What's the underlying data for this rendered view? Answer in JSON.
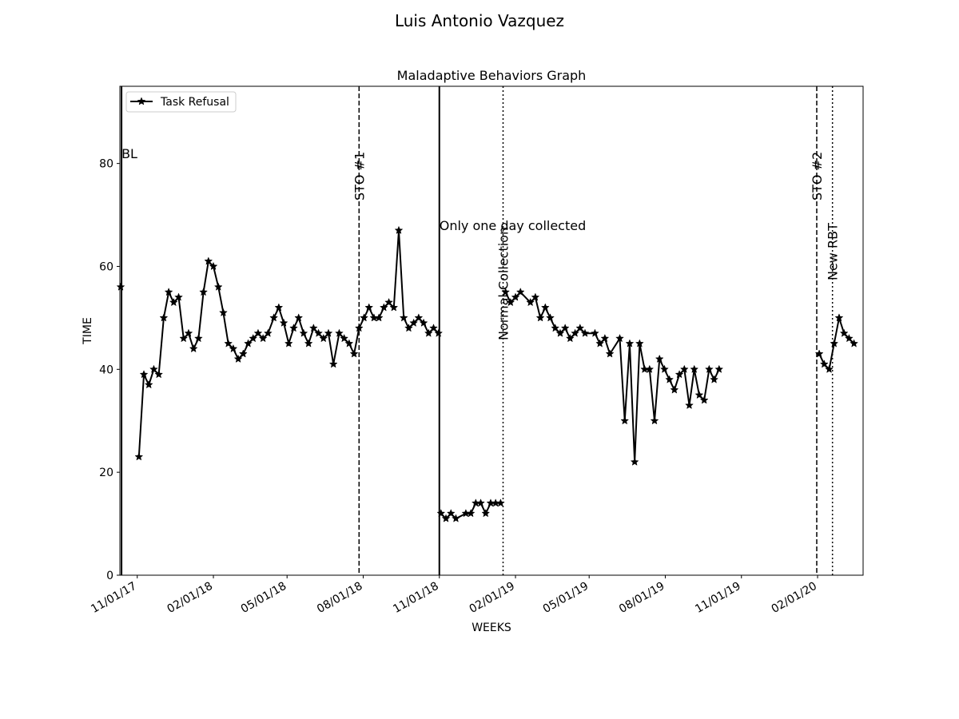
{
  "figure_title": "Luis Antonio  Vazquez",
  "chart_data": {
    "type": "line",
    "title": "Maladaptive Behaviors Graph",
    "xlabel": "WEEKS",
    "ylabel": "TIME",
    "ylim": [
      0,
      95
    ],
    "xlim": [
      "2017-10-11",
      "2020-03-27"
    ],
    "yticks": [
      0,
      20,
      40,
      60,
      80
    ],
    "xticks": [
      "11/01/17",
      "02/01/18",
      "05/01/18",
      "08/01/18",
      "11/01/18",
      "02/01/19",
      "05/01/19",
      "08/01/19",
      "11/01/19",
      "02/01/20"
    ],
    "xtick_dates": [
      "2017-11-01",
      "2018-02-01",
      "2018-05-01",
      "2018-08-01",
      "2018-11-01",
      "2019-02-01",
      "2019-05-01",
      "2019-08-01",
      "2019-11-01",
      "2020-02-01"
    ],
    "grid": false,
    "legend": {
      "position": "upper left",
      "entries": [
        "Task Refusal"
      ]
    },
    "marker": "star",
    "line_color": "#000000",
    "series": [
      {
        "name": "Task Refusal",
        "segments": [
          [
            [
              "2017-10-12",
              56
            ]
          ],
          [
            [
              "2017-11-03",
              23
            ],
            [
              "2017-11-09",
              39
            ],
            [
              "2017-11-15",
              37
            ],
            [
              "2017-11-21",
              40
            ],
            [
              "2017-11-27",
              39
            ],
            [
              "2017-12-03",
              50
            ],
            [
              "2017-12-09",
              55
            ],
            [
              "2017-12-15",
              53
            ],
            [
              "2017-12-21",
              54
            ],
            [
              "2017-12-27",
              46
            ],
            [
              "2018-01-02",
              47
            ],
            [
              "2018-01-08",
              44
            ],
            [
              "2018-01-14",
              46
            ],
            [
              "2018-01-20",
              55
            ],
            [
              "2018-01-26",
              61
            ],
            [
              "2018-02-01",
              60
            ],
            [
              "2018-02-07",
              56
            ],
            [
              "2018-02-13",
              51
            ],
            [
              "2018-02-19",
              45
            ],
            [
              "2018-02-25",
              44
            ],
            [
              "2018-03-03",
              42
            ],
            [
              "2018-03-09",
              43
            ],
            [
              "2018-03-15",
              45
            ],
            [
              "2018-03-21",
              46
            ],
            [
              "2018-03-27",
              47
            ],
            [
              "2018-04-02",
              46
            ],
            [
              "2018-04-08",
              47
            ],
            [
              "2018-04-15",
              50
            ],
            [
              "2018-04-21",
              52
            ],
            [
              "2018-04-27",
              49
            ],
            [
              "2018-05-03",
              45
            ],
            [
              "2018-05-09",
              48
            ],
            [
              "2018-05-15",
              50
            ],
            [
              "2018-05-21",
              47
            ],
            [
              "2018-05-27",
              45
            ],
            [
              "2018-06-02",
              48
            ],
            [
              "2018-06-08",
              47
            ],
            [
              "2018-06-14",
              46
            ],
            [
              "2018-06-20",
              47
            ],
            [
              "2018-06-26",
              41
            ],
            [
              "2018-07-03",
              47
            ],
            [
              "2018-07-09",
              46
            ],
            [
              "2018-07-15",
              45
            ],
            [
              "2018-07-21",
              43
            ],
            [
              "2018-07-27",
              48
            ],
            [
              "2018-08-02",
              50
            ],
            [
              "2018-08-08",
              52
            ],
            [
              "2018-08-14",
              50
            ],
            [
              "2018-08-20",
              50
            ],
            [
              "2018-08-26",
              52
            ],
            [
              "2018-09-01",
              53
            ],
            [
              "2018-09-07",
              52
            ],
            [
              "2018-09-13",
              67
            ],
            [
              "2018-09-19",
              50
            ],
            [
              "2018-09-25",
              48
            ],
            [
              "2018-10-01",
              49
            ],
            [
              "2018-10-07",
              50
            ],
            [
              "2018-10-13",
              49
            ],
            [
              "2018-10-19",
              47
            ],
            [
              "2018-10-25",
              48
            ],
            [
              "2018-10-31",
              47
            ]
          ],
          [
            [
              "2018-11-03",
              12
            ],
            [
              "2018-11-09",
              11
            ],
            [
              "2018-11-15",
              12
            ],
            [
              "2018-11-21",
              11
            ],
            [
              "2018-12-03",
              12
            ],
            [
              "2018-12-09",
              12
            ],
            [
              "2018-12-15",
              14
            ],
            [
              "2018-12-21",
              14
            ],
            [
              "2018-12-27",
              12
            ],
            [
              "2019-01-02",
              14
            ],
            [
              "2019-01-08",
              14
            ],
            [
              "2019-01-14",
              14
            ]
          ],
          [
            [
              "2019-01-20",
              55
            ],
            [
              "2019-01-26",
              53
            ],
            [
              "2019-02-01",
              54
            ],
            [
              "2019-02-07",
              55
            ],
            [
              "2019-02-19",
              53
            ],
            [
              "2019-02-25",
              54
            ],
            [
              "2019-03-03",
              50
            ],
            [
              "2019-03-09",
              52
            ],
            [
              "2019-03-15",
              50
            ],
            [
              "2019-03-21",
              48
            ],
            [
              "2019-03-27",
              47
            ],
            [
              "2019-04-02",
              48
            ],
            [
              "2019-04-08",
              46
            ],
            [
              "2019-04-14",
              47
            ],
            [
              "2019-04-20",
              48
            ],
            [
              "2019-04-26",
              47
            ],
            [
              "2019-05-08",
              47
            ],
            [
              "2019-05-14",
              45
            ],
            [
              "2019-05-20",
              46
            ],
            [
              "2019-05-26",
              43
            ],
            [
              "2019-06-07",
              46
            ],
            [
              "2019-06-13",
              30
            ],
            [
              "2019-06-19",
              45
            ],
            [
              "2019-06-25",
              22
            ],
            [
              "2019-07-01",
              45
            ],
            [
              "2019-07-07",
              40
            ],
            [
              "2019-07-13",
              40
            ],
            [
              "2019-07-19",
              30
            ],
            [
              "2019-07-25",
              42
            ],
            [
              "2019-07-31",
              40
            ],
            [
              "2019-08-06",
              38
            ],
            [
              "2019-08-12",
              36
            ],
            [
              "2019-08-18",
              39
            ],
            [
              "2019-08-24",
              40
            ],
            [
              "2019-08-30",
              33
            ],
            [
              "2019-09-05",
              40
            ],
            [
              "2019-09-11",
              35
            ],
            [
              "2019-09-17",
              34
            ],
            [
              "2019-09-23",
              40
            ],
            [
              "2019-09-29",
              38
            ],
            [
              "2019-10-05",
              40
            ]
          ],
          [
            [
              "2020-02-03",
              43
            ],
            [
              "2020-02-09",
              41
            ],
            [
              "2020-02-15",
              40
            ],
            [
              "2020-02-21",
              45
            ],
            [
              "2020-02-27",
              50
            ],
            [
              "2020-03-04",
              47
            ],
            [
              "2020-03-10",
              46
            ],
            [
              "2020-03-16",
              45
            ]
          ]
        ]
      }
    ],
    "phase_lines": [
      {
        "date": "2017-10-13",
        "style": "solid",
        "label": "BL",
        "label_orientation": "horizontal"
      },
      {
        "date": "2018-07-27",
        "style": "dashed",
        "label": "STO #1",
        "label_orientation": "vertical"
      },
      {
        "date": "2018-11-01",
        "style": "solid",
        "label": "Only one day collected",
        "label_orientation": "horizontal"
      },
      {
        "date": "2019-01-17",
        "style": "dotted",
        "label": "Normal Collection",
        "label_orientation": "vertical"
      },
      {
        "date": "2020-01-31",
        "style": "dashed",
        "label": "STO #2",
        "label_orientation": "vertical"
      },
      {
        "date": "2020-02-19",
        "style": "dotted",
        "label": "New RBT",
        "label_orientation": "vertical"
      }
    ]
  }
}
